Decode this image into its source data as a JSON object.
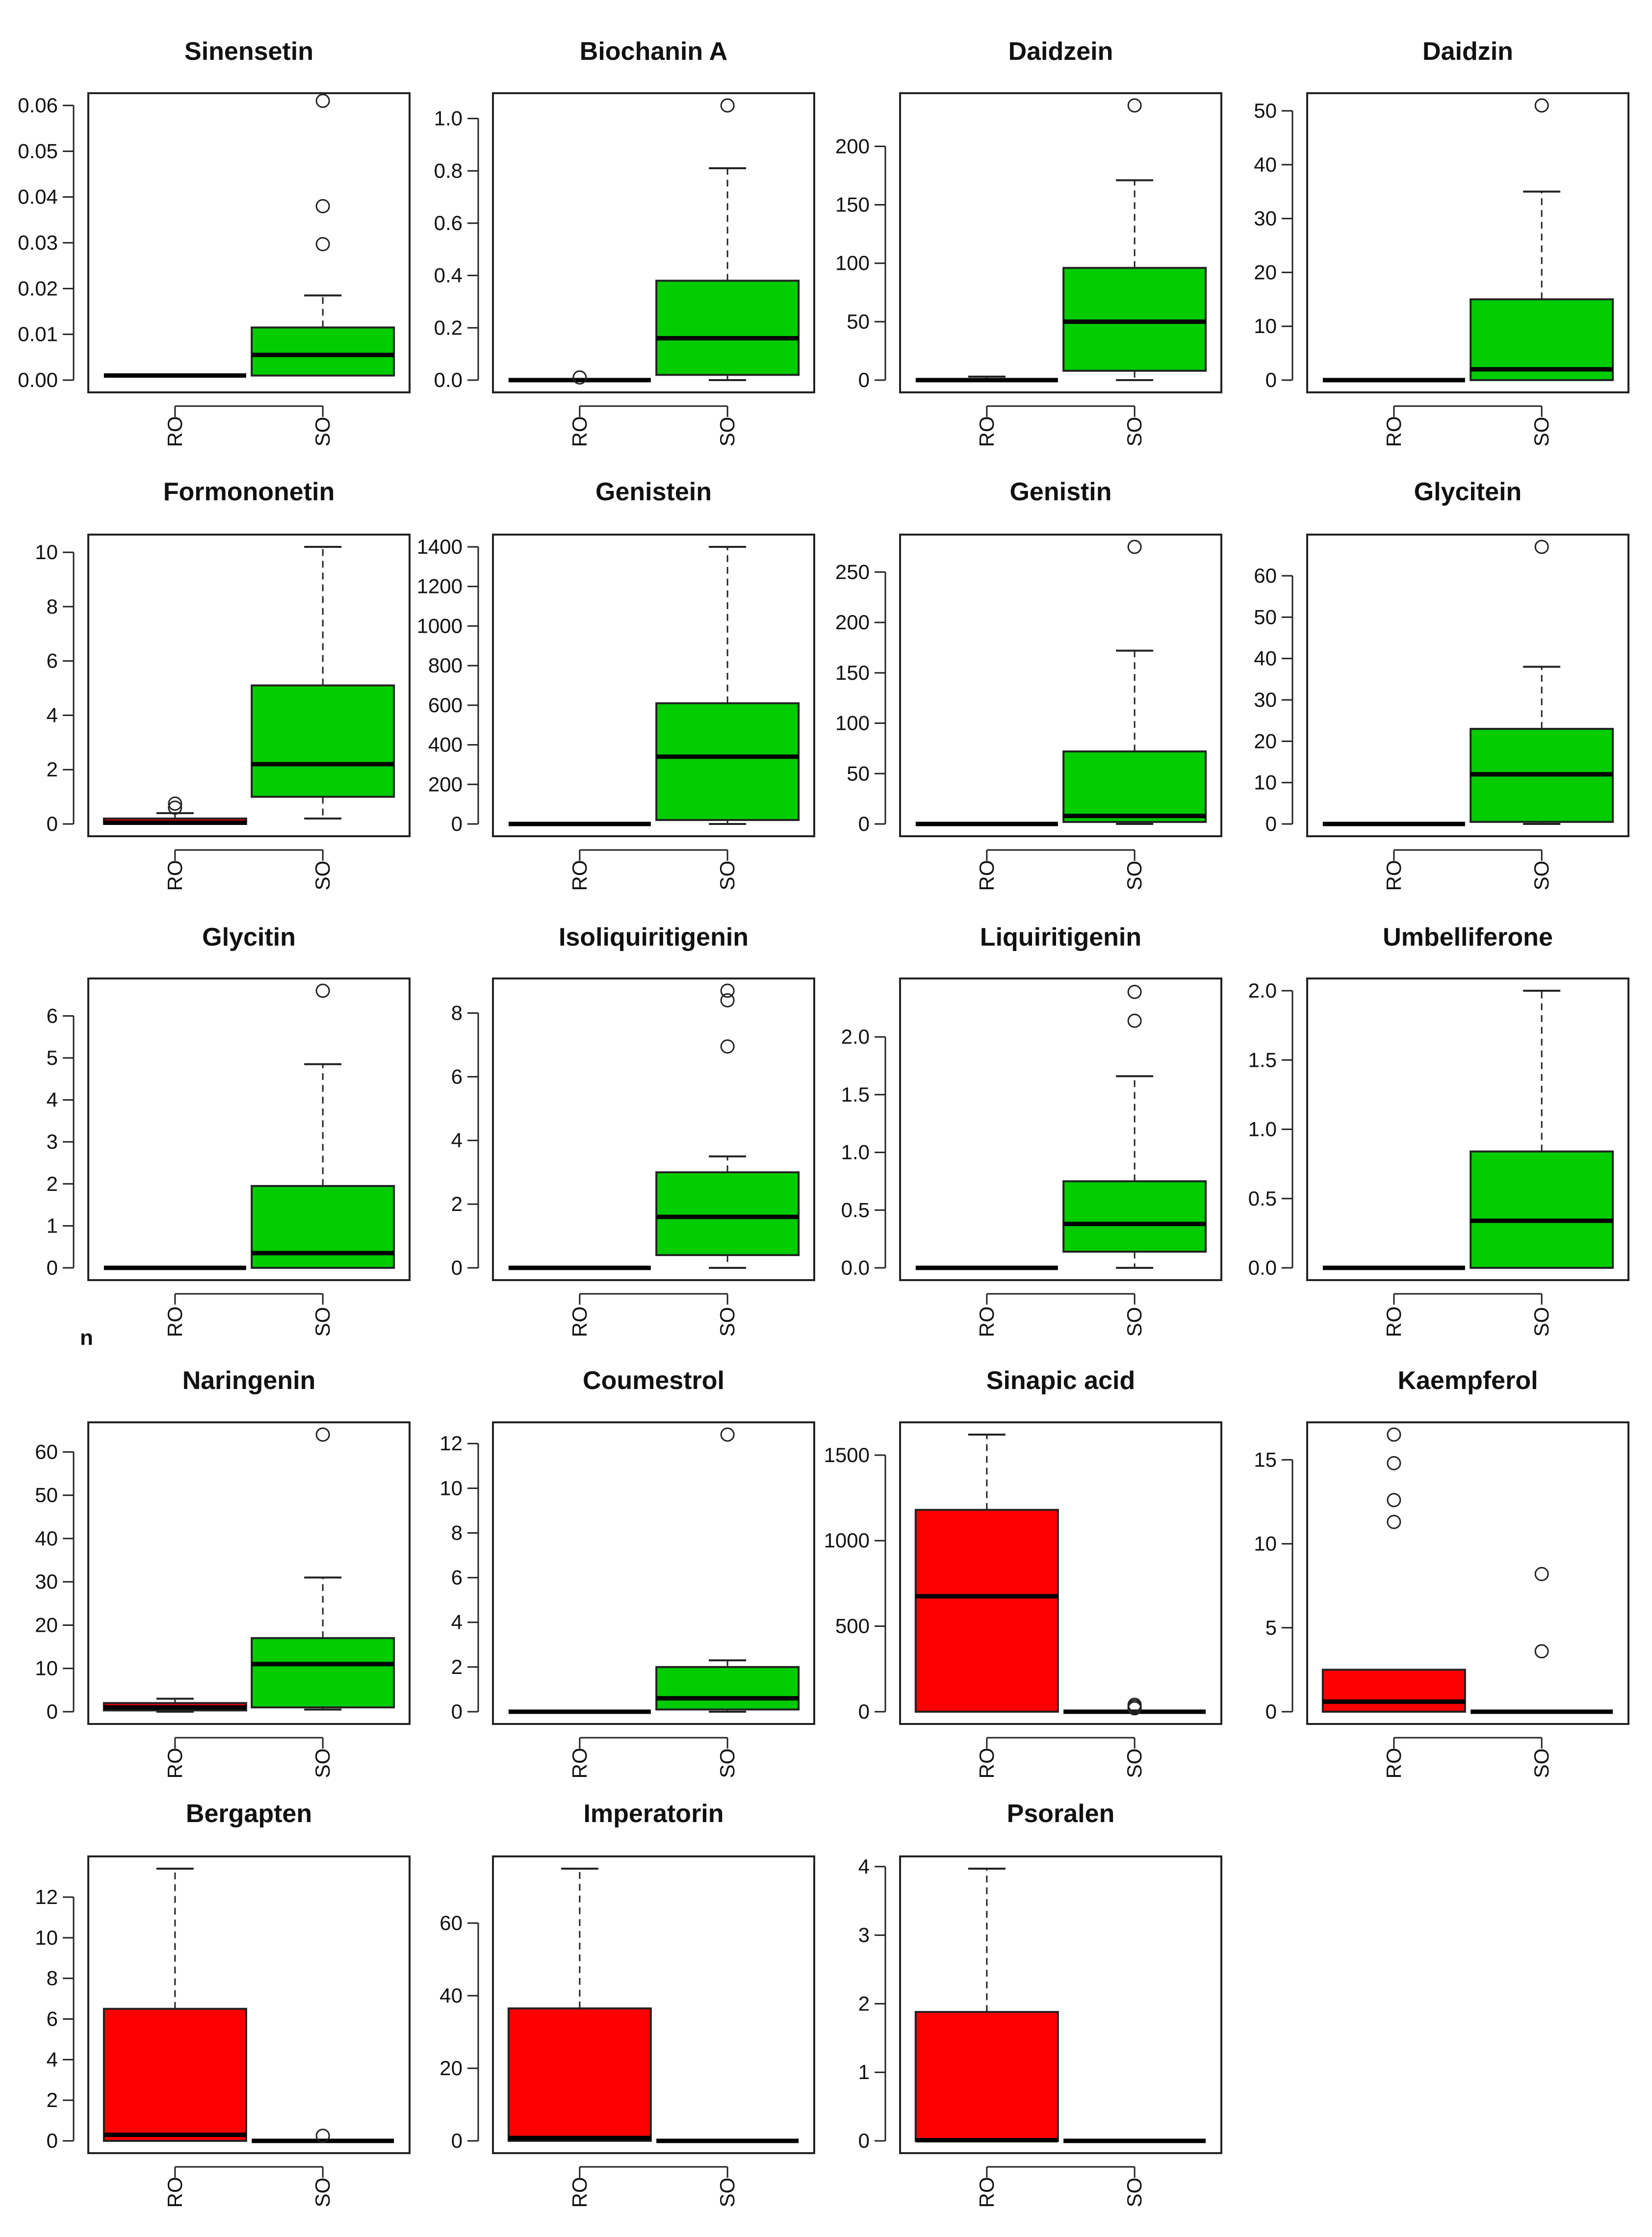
{
  "figure_note": "n",
  "colors": {
    "RO": "#ff0000",
    "SO": "#00cc00"
  },
  "chart_data": [
    {
      "type": "box",
      "title": "Sinensetin",
      "categories": [
        "RO",
        "SO"
      ],
      "ylim": [
        0,
        0.06
      ],
      "yticks": [
        0.0,
        0.01,
        0.02,
        0.03,
        0.04,
        0.05,
        0.06
      ],
      "ytick_labels": [
        "0.00",
        "0.01",
        "0.02",
        "0.03",
        "0.04",
        "0.05",
        "0.06"
      ],
      "boxes": [
        {
          "group": "RO",
          "min": 0.001,
          "q1": 0.001,
          "median": 0.001,
          "q3": 0.001,
          "max": 0.001,
          "outliers": []
        },
        {
          "group": "SO",
          "min": 0.001,
          "q1": 0.001,
          "median": 0.0055,
          "q3": 0.0115,
          "max": 0.0185,
          "outliers": [
            0.0297,
            0.038,
            0.061
          ]
        }
      ]
    },
    {
      "type": "box",
      "title": "Biochanin  A",
      "categories": [
        "RO",
        "SO"
      ],
      "ylim": [
        0,
        1.05
      ],
      "yticks": [
        0,
        0.2,
        0.4,
        0.6,
        0.8,
        1.0
      ],
      "ytick_labels": [
        "0.0",
        "0.2",
        "0.4",
        "0.6",
        "0.8",
        "1.0"
      ],
      "boxes": [
        {
          "group": "RO",
          "min": 0,
          "q1": 0,
          "median": 0,
          "q3": 0,
          "max": 0,
          "outliers": [
            0.01
          ]
        },
        {
          "group": "SO",
          "min": 0.0,
          "q1": 0.02,
          "median": 0.16,
          "q3": 0.38,
          "max": 0.81,
          "outliers": [
            1.05
          ]
        }
      ]
    },
    {
      "type": "box",
      "title": "Daidzein",
      "categories": [
        "RO",
        "SO"
      ],
      "ylim": [
        0,
        235
      ],
      "yticks": [
        0,
        50,
        100,
        150,
        200
      ],
      "ytick_labels": [
        "0",
        "50",
        "100",
        "150",
        "200"
      ],
      "boxes": [
        {
          "group": "RO",
          "min": 0,
          "q1": 0,
          "median": 0,
          "q3": 0,
          "max": 3,
          "outliers": []
        },
        {
          "group": "SO",
          "min": 0,
          "q1": 8,
          "median": 50,
          "q3": 96,
          "max": 171,
          "outliers": [
            235
          ]
        }
      ]
    },
    {
      "type": "box",
      "title": "Daidzin",
      "categories": [
        "RO",
        "SO"
      ],
      "ylim": [
        0,
        51
      ],
      "yticks": [
        0,
        10,
        20,
        30,
        40,
        50
      ],
      "ytick_labels": [
        "0",
        "10",
        "20",
        "30",
        "40",
        "50"
      ],
      "boxes": [
        {
          "group": "RO",
          "min": 0,
          "q1": 0,
          "median": 0,
          "q3": 0,
          "max": 0,
          "outliers": []
        },
        {
          "group": "SO",
          "min": 0,
          "q1": 0,
          "median": 2,
          "q3": 15,
          "max": 35,
          "outliers": [
            51
          ]
        }
      ]
    },
    {
      "type": "box",
      "title": "Formononetin",
      "categories": [
        "RO",
        "SO"
      ],
      "ylim": [
        0,
        10.2
      ],
      "yticks": [
        0,
        2,
        4,
        6,
        8,
        10
      ],
      "ytick_labels": [
        "0",
        "2",
        "4",
        "6",
        "8",
        "10"
      ],
      "boxes": [
        {
          "group": "RO",
          "min": 0,
          "q1": 0,
          "median": 0.05,
          "q3": 0.2,
          "max": 0.4,
          "outliers": [
            0.6,
            0.75
          ]
        },
        {
          "group": "SO",
          "min": 0.2,
          "q1": 1.0,
          "median": 2.2,
          "q3": 5.1,
          "max": 10.2,
          "outliers": []
        }
      ]
    },
    {
      "type": "box",
      "title": "Genistein",
      "categories": [
        "RO",
        "SO"
      ],
      "ylim": [
        0,
        1400
      ],
      "yticks": [
        0,
        200,
        400,
        600,
        800,
        1000,
        1200,
        1400
      ],
      "ytick_labels": [
        "0",
        "200",
        "400",
        "600",
        "800",
        "1000",
        "1200",
        "1400"
      ],
      "boxes": [
        {
          "group": "RO",
          "min": 0,
          "q1": 0,
          "median": 0,
          "q3": 0,
          "max": 0,
          "outliers": []
        },
        {
          "group": "SO",
          "min": 0,
          "q1": 20,
          "median": 340,
          "q3": 610,
          "max": 1400,
          "outliers": []
        }
      ]
    },
    {
      "type": "box",
      "title": "Genistin",
      "categories": [
        "RO",
        "SO"
      ],
      "ylim": [
        0,
        275
      ],
      "yticks": [
        0,
        50,
        100,
        150,
        200,
        250
      ],
      "ytick_labels": [
        "0",
        "50",
        "100",
        "150",
        "200",
        "250"
      ],
      "boxes": [
        {
          "group": "RO",
          "min": 0,
          "q1": 0,
          "median": 0,
          "q3": 0,
          "max": 0,
          "outliers": []
        },
        {
          "group": "SO",
          "min": 0,
          "q1": 2,
          "median": 8,
          "q3": 72,
          "max": 172,
          "outliers": [
            275
          ]
        }
      ]
    },
    {
      "type": "box",
      "title": "Glycitein",
      "categories": [
        "RO",
        "SO"
      ],
      "ylim": [
        0,
        67
      ],
      "yticks": [
        0,
        10,
        20,
        30,
        40,
        50,
        60
      ],
      "ytick_labels": [
        "0",
        "10",
        "20",
        "30",
        "40",
        "50",
        "60"
      ],
      "boxes": [
        {
          "group": "RO",
          "min": 0,
          "q1": 0,
          "median": 0,
          "q3": 0,
          "max": 0,
          "outliers": []
        },
        {
          "group": "SO",
          "min": 0,
          "q1": 0.5,
          "median": 12,
          "q3": 23,
          "max": 38,
          "outliers": [
            67
          ]
        }
      ]
    },
    {
      "type": "box",
      "title": "Glycitin",
      "categories": [
        "RO",
        "SO"
      ],
      "ylim": [
        0,
        6.6
      ],
      "yticks": [
        0,
        1,
        2,
        3,
        4,
        5,
        6
      ],
      "ytick_labels": [
        "0",
        "1",
        "2",
        "3",
        "4",
        "5",
        "6"
      ],
      "boxes": [
        {
          "group": "RO",
          "min": 0,
          "q1": 0,
          "median": 0,
          "q3": 0,
          "max": 0,
          "outliers": []
        },
        {
          "group": "SO",
          "min": 0,
          "q1": 0,
          "median": 0.35,
          "q3": 1.95,
          "max": 4.85,
          "outliers": [
            6.6
          ]
        }
      ]
    },
    {
      "type": "box",
      "title": "Isoliquiritigenin",
      "categories": [
        "RO",
        "SO"
      ],
      "ylim": [
        0,
        8.7
      ],
      "yticks": [
        0,
        2,
        4,
        6,
        8
      ],
      "ytick_labels": [
        "0",
        "2",
        "4",
        "6",
        "8"
      ],
      "boxes": [
        {
          "group": "RO",
          "min": 0,
          "q1": 0,
          "median": 0,
          "q3": 0,
          "max": 0,
          "outliers": []
        },
        {
          "group": "SO",
          "min": 0,
          "q1": 0.4,
          "median": 1.6,
          "q3": 3.0,
          "max": 3.5,
          "outliers": [
            6.95,
            8.4,
            8.7
          ]
        }
      ]
    },
    {
      "type": "box",
      "title": "Liquiritigenin",
      "categories": [
        "RO",
        "SO"
      ],
      "ylim": [
        0,
        2.4
      ],
      "yticks": [
        0,
        0.5,
        1.0,
        1.5,
        2.0
      ],
      "ytick_labels": [
        "0.0",
        "0.5",
        "1.0",
        "1.5",
        "2.0"
      ],
      "boxes": [
        {
          "group": "RO",
          "min": 0,
          "q1": 0,
          "median": 0,
          "q3": 0,
          "max": 0,
          "outliers": []
        },
        {
          "group": "SO",
          "min": 0,
          "q1": 0.14,
          "median": 0.38,
          "q3": 0.75,
          "max": 1.66,
          "outliers": [
            2.14,
            2.39
          ]
        }
      ]
    },
    {
      "type": "box",
      "title": "Umbelliferone",
      "categories": [
        "RO",
        "SO"
      ],
      "ylim": [
        0,
        2.0
      ],
      "yticks": [
        0,
        0.5,
        1.0,
        1.5,
        2.0
      ],
      "ytick_labels": [
        "0.0",
        "0.5",
        "1.0",
        "1.5",
        "2.0"
      ],
      "boxes": [
        {
          "group": "RO",
          "min": 0,
          "q1": 0,
          "median": 0,
          "q3": 0,
          "max": 0,
          "outliers": []
        },
        {
          "group": "SO",
          "min": 0,
          "q1": 0,
          "median": 0.34,
          "q3": 0.84,
          "max": 2.0,
          "outliers": []
        }
      ]
    },
    {
      "type": "box",
      "title": "Naringenin",
      "categories": [
        "RO",
        "SO"
      ],
      "ylim": [
        0,
        64
      ],
      "yticks": [
        0,
        10,
        20,
        30,
        40,
        50,
        60
      ],
      "ytick_labels": [
        "0",
        "10",
        "20",
        "30",
        "40",
        "50",
        "60"
      ],
      "boxes": [
        {
          "group": "RO",
          "min": 0,
          "q1": 0.3,
          "median": 1.0,
          "q3": 2.0,
          "max": 3.0,
          "outliers": []
        },
        {
          "group": "SO",
          "min": 0.5,
          "q1": 1,
          "median": 11,
          "q3": 17,
          "max": 31,
          "outliers": [
            64
          ]
        }
      ]
    },
    {
      "type": "box",
      "title": "Coumestrol",
      "categories": [
        "RO",
        "SO"
      ],
      "ylim": [
        0,
        12.4
      ],
      "yticks": [
        0,
        2,
        4,
        6,
        8,
        10,
        12
      ],
      "ytick_labels": [
        "0",
        "2",
        "4",
        "6",
        "8",
        "10",
        "12"
      ],
      "boxes": [
        {
          "group": "RO",
          "min": 0,
          "q1": 0,
          "median": 0,
          "q3": 0,
          "max": 0,
          "outliers": []
        },
        {
          "group": "SO",
          "min": 0,
          "q1": 0.1,
          "median": 0.6,
          "q3": 2.0,
          "max": 2.3,
          "outliers": [
            12.4
          ]
        }
      ]
    },
    {
      "type": "box",
      "title": "Sinapic  acid",
      "categories": [
        "RO",
        "SO"
      ],
      "ylim": [
        0,
        1620
      ],
      "yticks": [
        0,
        500,
        1000,
        1500
      ],
      "ytick_labels": [
        "0",
        "500",
        "1000",
        "1500"
      ],
      "boxes": [
        {
          "group": "RO",
          "min": 0,
          "q1": 0,
          "median": 675,
          "q3": 1180,
          "max": 1620,
          "outliers": []
        },
        {
          "group": "SO",
          "min": 0,
          "q1": 0,
          "median": 0,
          "q3": 0,
          "max": 0,
          "outliers": [
            20,
            30,
            40
          ]
        }
      ]
    },
    {
      "type": "box",
      "title": "Kaempferol",
      "categories": [
        "RO",
        "SO"
      ],
      "ylim": [
        0,
        16.5
      ],
      "yticks": [
        0,
        5,
        10,
        15
      ],
      "ytick_labels": [
        "0",
        "5",
        "10",
        "15"
      ],
      "boxes": [
        {
          "group": "RO",
          "min": 0,
          "q1": 0,
          "median": 0.6,
          "q3": 2.5,
          "max": 2.5,
          "outliers": [
            11.3,
            12.6,
            14.8,
            16.5
          ]
        },
        {
          "group": "SO",
          "min": 0,
          "q1": 0,
          "median": 0,
          "q3": 0,
          "max": 0,
          "outliers": [
            3.6,
            8.2
          ]
        }
      ]
    },
    {
      "type": "box",
      "title": "Bergapten",
      "categories": [
        "RO",
        "SO"
      ],
      "ylim": [
        0,
        13.4
      ],
      "yticks": [
        0,
        2,
        4,
        6,
        8,
        10,
        12
      ],
      "ytick_labels": [
        "0",
        "2",
        "4",
        "6",
        "8",
        "10",
        "12"
      ],
      "boxes": [
        {
          "group": "RO",
          "min": 0,
          "q1": 0,
          "median": 0.3,
          "q3": 6.5,
          "max": 13.4,
          "outliers": []
        },
        {
          "group": "SO",
          "min": 0,
          "q1": 0,
          "median": 0,
          "q3": 0,
          "max": 0,
          "outliers": [
            0.25
          ]
        }
      ]
    },
    {
      "type": "box",
      "title": "Imperatorin",
      "categories": [
        "RO",
        "SO"
      ],
      "ylim": [
        0,
        75
      ],
      "yticks": [
        0,
        20,
        40,
        60
      ],
      "ytick_labels": [
        "0",
        "20",
        "40",
        "60"
      ],
      "boxes": [
        {
          "group": "RO",
          "min": 0,
          "q1": 0,
          "median": 0.8,
          "q3": 36.5,
          "max": 75,
          "outliers": []
        },
        {
          "group": "SO",
          "min": 0,
          "q1": 0,
          "median": 0,
          "q3": 0,
          "max": 0,
          "outliers": []
        }
      ]
    },
    {
      "type": "box",
      "title": "Psoralen",
      "categories": [
        "RO",
        "SO"
      ],
      "ylim": [
        0,
        3.97
      ],
      "yticks": [
        0,
        1,
        2,
        3,
        4
      ],
      "ytick_labels": [
        "0",
        "1",
        "2",
        "3",
        "4"
      ],
      "boxes": [
        {
          "group": "RO",
          "min": 0,
          "q1": 0,
          "median": 0.01,
          "q3": 1.88,
          "max": 3.97,
          "outliers": []
        },
        {
          "group": "SO",
          "min": 0,
          "q1": 0,
          "median": 0,
          "q3": 0,
          "max": 0,
          "outliers": []
        }
      ]
    }
  ]
}
